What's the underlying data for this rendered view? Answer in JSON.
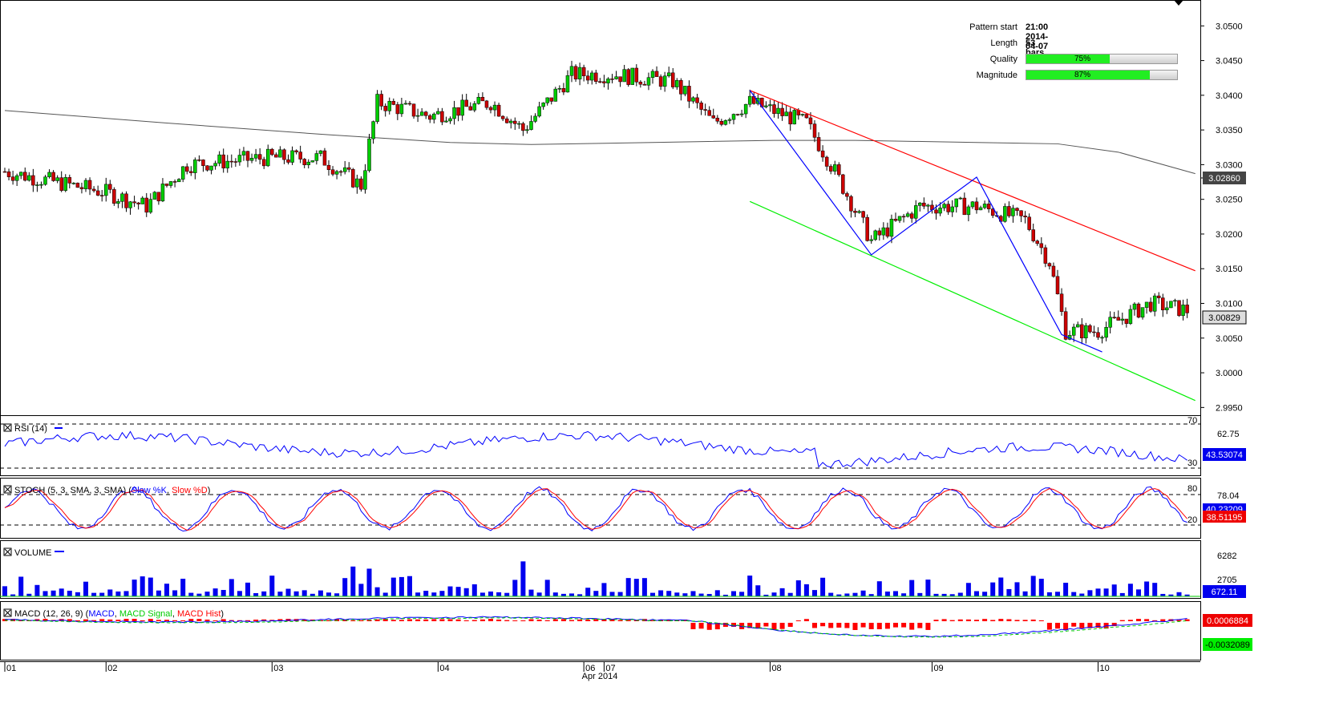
{
  "pattern": {
    "start_label": "Pattern start",
    "start_value": "21:00 2014-04-07",
    "length_label": "Length",
    "length_value": "53 bars",
    "quality_label": "Quality",
    "quality_text": "75%",
    "quality_pct": 75,
    "magnitude_label": "Magnitude",
    "magnitude_text": "87%",
    "magnitude_pct": 87
  },
  "chart_data": {
    "type": "candlestick",
    "price_axis": {
      "ticks": [
        "3.0500",
        "3.0450",
        "3.0400",
        "3.0350",
        "3.0300",
        "3.0250",
        "3.0200",
        "3.0150",
        "3.0100",
        "3.0050",
        "3.0000",
        "2.9950"
      ],
      "ylim": [
        2.994,
        3.0535
      ]
    },
    "price_labels": {
      "ma": "3.02860",
      "last": "3.00829"
    },
    "date_labels": [
      "01",
      "02",
      "03",
      "04",
      "06",
      "07",
      "08",
      "09",
      "10"
    ],
    "month_label": "Apr 2014",
    "colors": {
      "up": "#00cc00",
      "down": "#cc0000",
      "resistance": "#ff0000",
      "support": "#00ee00",
      "zigzag": "#0000ff",
      "ma": "#555555"
    },
    "ma_points": [
      [
        0,
        3.0378
      ],
      [
        40,
        3.036
      ],
      [
        80,
        3.0343
      ],
      [
        110,
        3.0332
      ],
      [
        130,
        3.0329
      ],
      [
        160,
        3.0332
      ],
      [
        190,
        3.0335
      ],
      [
        210,
        3.0335
      ],
      [
        240,
        3.0332
      ],
      [
        260,
        3.033
      ],
      [
        275,
        3.0318
      ],
      [
        294,
        3.0287
      ]
    ],
    "channel": {
      "resistance": [
        [
          184,
          3.0407
        ],
        [
          294,
          3.0147
        ]
      ],
      "support": [
        [
          184,
          3.0247
        ],
        [
          294,
          2.996
        ]
      ]
    },
    "zigzag": [
      [
        184,
        3.0407
      ],
      [
        214,
        3.017
      ],
      [
        240,
        3.0282
      ],
      [
        261,
        3.0055
      ],
      [
        271,
        3.003
      ]
    ],
    "panels": {
      "rsi": {
        "title": "RSI (14)",
        "levels": [
          "70",
          "62.75",
          "30"
        ],
        "value": "43.53074"
      },
      "stoch": {
        "title": "STOCH (5, 3, SMA, 3, SMA)",
        "series": [
          "Slow %K",
          "Slow %D"
        ],
        "levels": [
          "80",
          "78.04",
          "20"
        ],
        "k_value": "40.23209",
        "d_value": "38.51195"
      },
      "volume": {
        "title": "VOLUME",
        "levels": [
          "6282",
          "2705"
        ],
        "value": "672.11"
      },
      "macd": {
        "title": "MACD (12, 26, 9)",
        "series": [
          "MACD",
          "MACD Signal",
          "MACD Hist"
        ],
        "macd_value": "0.0006884",
        "signal_value": "-0.0032089"
      }
    }
  }
}
